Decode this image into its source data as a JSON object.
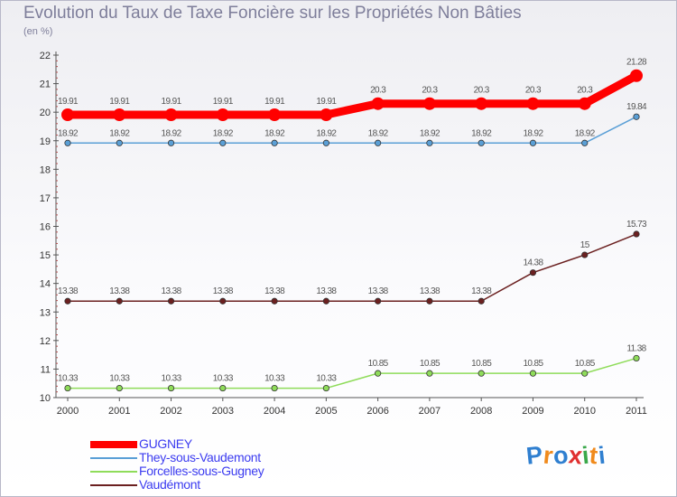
{
  "title": "Evolution du Taux de Taxe Foncière sur les Propriétés Non Bâties",
  "unit": "(en %)",
  "logo": {
    "letters": [
      "P",
      "r",
      "o",
      "x",
      "i",
      "t",
      "i"
    ],
    "colors": [
      "#2f7fd0",
      "#f08a1c",
      "#2f7fd0",
      "#e03030",
      "#3aa84a",
      "#f08a1c",
      "#2f7fd0"
    ]
  },
  "chart_data": {
    "type": "line",
    "title": "Evolution du Taux de Taxe Foncière sur les Propriétés Non Bâties",
    "ylabel": "(en %)",
    "xlabel": "",
    "x": [
      "2000",
      "2001",
      "2002",
      "2003",
      "2004",
      "2005",
      "2006",
      "2007",
      "2008",
      "2009",
      "2010",
      "2011"
    ],
    "ylim": [
      10,
      22
    ],
    "yticks": [
      "10",
      "11",
      "12",
      "13",
      "14",
      "15",
      "16",
      "17",
      "18",
      "19",
      "20",
      "21",
      "22"
    ],
    "grid": false,
    "legend_position": "bottom-left",
    "series": [
      {
        "name": "GUGNEY",
        "color": "#ff0000",
        "values": [
          19.91,
          19.91,
          19.91,
          19.91,
          19.91,
          19.91,
          20.3,
          20.3,
          20.3,
          20.3,
          20.3,
          21.28
        ],
        "labels": [
          "19.91",
          "19.91",
          "19.91",
          "19.91",
          "19.91",
          "19.91",
          "20.3",
          "20.3",
          "20.3",
          "20.3",
          "20.3",
          "21.28"
        ]
      },
      {
        "name": "They-sous-Vaudemont",
        "color": "#5a9fd6",
        "values": [
          18.92,
          18.92,
          18.92,
          18.92,
          18.92,
          18.92,
          18.92,
          18.92,
          18.92,
          18.92,
          18.92,
          19.84
        ],
        "labels": [
          "18.92",
          "18.92",
          "18.92",
          "18.92",
          "18.92",
          "18.92",
          "18.92",
          "18.92",
          "18.92",
          "18.92",
          "18.92",
          "19.84"
        ]
      },
      {
        "name": "Forcelles-sous-Gugney",
        "color": "#8fdc5a",
        "values": [
          10.33,
          10.33,
          10.33,
          10.33,
          10.33,
          10.33,
          10.85,
          10.85,
          10.85,
          10.85,
          10.85,
          11.38
        ],
        "labels": [
          "10.33",
          "10.33",
          "10.33",
          "10.33",
          "10.33",
          "10.33",
          "10.85",
          "10.85",
          "10.85",
          "10.85",
          "10.85",
          "11.38"
        ]
      },
      {
        "name": "Vaudémont",
        "color": "#6b2020",
        "values": [
          13.38,
          13.38,
          13.38,
          13.38,
          13.38,
          13.38,
          13.38,
          13.38,
          13.38,
          14.38,
          15,
          15.73
        ],
        "labels": [
          "13.38",
          "13.38",
          "13.38",
          "13.38",
          "13.38",
          "13.38",
          "13.38",
          "13.38",
          "13.38",
          "14.38",
          "15",
          "15.73"
        ]
      }
    ]
  }
}
